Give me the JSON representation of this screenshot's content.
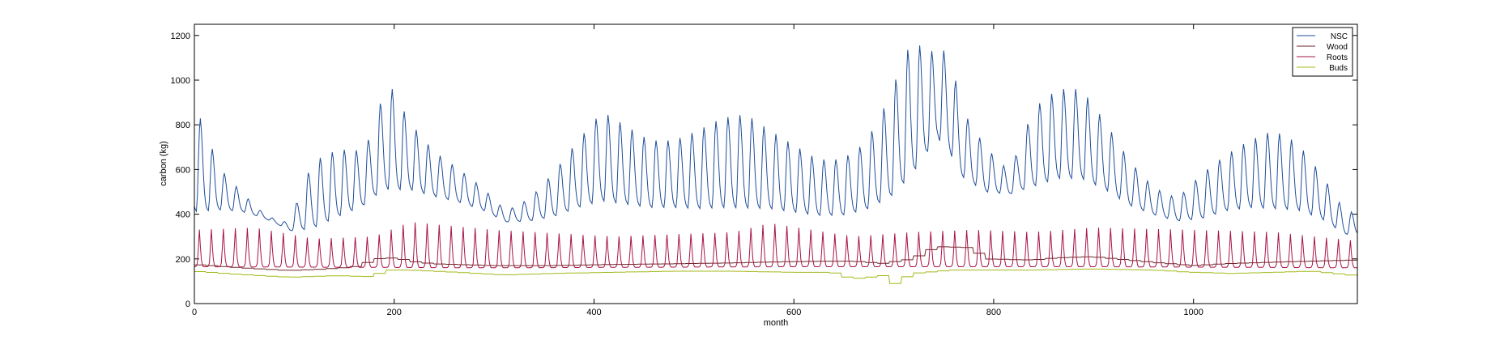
{
  "chart_data": {
    "type": "line",
    "title": "",
    "xlabel": "month",
    "ylabel": "carbon (kg)",
    "xlim": [
      0,
      1164
    ],
    "ylim": [
      0,
      1250
    ],
    "xticks": [
      0,
      200,
      400,
      600,
      800,
      1000
    ],
    "yticks": [
      0,
      200,
      400,
      600,
      800,
      1000,
      1200
    ],
    "grid": false,
    "legend_position": "top-right",
    "series_generation": {
      "cycle_months": 12,
      "NSC": {
        "envelope": [
          [
            0,
            480
          ],
          [
            12,
            350
          ],
          [
            24,
            200
          ],
          [
            36,
            130
          ],
          [
            48,
            90
          ],
          [
            60,
            40
          ],
          [
            72,
            20
          ],
          [
            84,
            15
          ],
          [
            96,
            40
          ],
          [
            108,
            200
          ],
          [
            120,
            300
          ],
          [
            144,
            300
          ],
          [
            168,
            250
          ],
          [
            180,
            300
          ],
          [
            192,
            500
          ],
          [
            204,
            400
          ],
          [
            216,
            300
          ],
          [
            240,
            200
          ],
          [
            264,
            150
          ],
          [
            288,
            100
          ],
          [
            312,
            50
          ],
          [
            336,
            100
          ],
          [
            360,
            200
          ],
          [
            384,
            300
          ],
          [
            408,
            400
          ],
          [
            432,
            350
          ],
          [
            456,
            300
          ],
          [
            480,
            300
          ],
          [
            504,
            350
          ],
          [
            528,
            400
          ],
          [
            552,
            420
          ],
          [
            576,
            350
          ],
          [
            600,
            300
          ],
          [
            624,
            250
          ],
          [
            648,
            250
          ],
          [
            672,
            300
          ],
          [
            696,
            450
          ],
          [
            708,
            550
          ],
          [
            720,
            600
          ],
          [
            732,
            450
          ],
          [
            744,
            400
          ],
          [
            756,
            450
          ],
          [
            768,
            300
          ],
          [
            792,
            200
          ],
          [
            816,
            100
          ],
          [
            840,
            350
          ],
          [
            864,
            400
          ],
          [
            888,
            400
          ],
          [
            912,
            300
          ],
          [
            936,
            200
          ],
          [
            960,
            120
          ],
          [
            984,
            100
          ],
          [
            1008,
            200
          ],
          [
            1032,
            250
          ],
          [
            1056,
            300
          ],
          [
            1080,
            350
          ],
          [
            1104,
            300
          ],
          [
            1128,
            200
          ],
          [
            1152,
            100
          ],
          [
            1164,
            100
          ]
        ],
        "base": [
          [
            0,
            460
          ],
          [
            24,
            440
          ],
          [
            48,
            420
          ],
          [
            72,
            380
          ],
          [
            96,
            330
          ],
          [
            120,
            370
          ],
          [
            144,
            420
          ],
          [
            168,
            460
          ],
          [
            192,
            560
          ],
          [
            216,
            540
          ],
          [
            240,
            500
          ],
          [
            264,
            470
          ],
          [
            288,
            430
          ],
          [
            312,
            370
          ],
          [
            336,
            380
          ],
          [
            360,
            410
          ],
          [
            384,
            460
          ],
          [
            408,
            500
          ],
          [
            432,
            480
          ],
          [
            456,
            460
          ],
          [
            480,
            460
          ],
          [
            504,
            460
          ],
          [
            528,
            470
          ],
          [
            552,
            470
          ],
          [
            576,
            460
          ],
          [
            600,
            440
          ],
          [
            624,
            420
          ],
          [
            648,
            420
          ],
          [
            672,
            450
          ],
          [
            696,
            520
          ],
          [
            720,
            650
          ],
          [
            744,
            780
          ],
          [
            756,
            720
          ],
          [
            768,
            600
          ],
          [
            792,
            520
          ],
          [
            816,
            500
          ],
          [
            840,
            560
          ],
          [
            864,
            600
          ],
          [
            888,
            600
          ],
          [
            912,
            540
          ],
          [
            936,
            460
          ],
          [
            960,
            410
          ],
          [
            984,
            380
          ],
          [
            1008,
            400
          ],
          [
            1032,
            440
          ],
          [
            1056,
            460
          ],
          [
            1080,
            460
          ],
          [
            1104,
            450
          ],
          [
            1128,
            400
          ],
          [
            1152,
            320
          ],
          [
            1164,
            320
          ]
        ]
      },
      "Roots": {
        "base": [
          [
            0,
            165
          ],
          [
            300,
            160
          ],
          [
            600,
            165
          ],
          [
            900,
            165
          ],
          [
            1164,
            160
          ]
        ],
        "peak": [
          [
            0,
            330
          ],
          [
            60,
            340
          ],
          [
            120,
            290
          ],
          [
            180,
            300
          ],
          [
            216,
            365
          ],
          [
            300,
            330
          ],
          [
            420,
            300
          ],
          [
            540,
            320
          ],
          [
            576,
            360
          ],
          [
            660,
            300
          ],
          [
            720,
            320
          ],
          [
            780,
            330
          ],
          [
            840,
            320
          ],
          [
            900,
            340
          ],
          [
            1000,
            330
          ],
          [
            1080,
            320
          ],
          [
            1164,
            280
          ]
        ]
      },
      "Wood": [
        [
          0,
          175
        ],
        [
          24,
          168
        ],
        [
          48,
          160
        ],
        [
          72,
          154
        ],
        [
          96,
          148
        ],
        [
          120,
          152
        ],
        [
          144,
          158
        ],
        [
          168,
          168
        ],
        [
          180,
          200
        ],
        [
          204,
          205
        ],
        [
          216,
          190
        ],
        [
          240,
          178
        ],
        [
          300,
          170
        ],
        [
          360,
          170
        ],
        [
          420,
          175
        ],
        [
          480,
          178
        ],
        [
          540,
          182
        ],
        [
          600,
          188
        ],
        [
          660,
          190
        ],
        [
          690,
          180
        ],
        [
          720,
          200
        ],
        [
          744,
          255
        ],
        [
          780,
          250
        ],
        [
          792,
          200
        ],
        [
          840,
          195
        ],
        [
          864,
          205
        ],
        [
          900,
          210
        ],
        [
          936,
          195
        ],
        [
          960,
          185
        ],
        [
          1000,
          170
        ],
        [
          1040,
          180
        ],
        [
          1080,
          185
        ],
        [
          1120,
          190
        ],
        [
          1164,
          195
        ]
      ],
      "Buds": [
        [
          0,
          145
        ],
        [
          48,
          130
        ],
        [
          96,
          118
        ],
        [
          144,
          125
        ],
        [
          180,
          120
        ],
        [
          192,
          150
        ],
        [
          216,
          150
        ],
        [
          264,
          140
        ],
        [
          312,
          128
        ],
        [
          360,
          135
        ],
        [
          420,
          140
        ],
        [
          480,
          145
        ],
        [
          540,
          145
        ],
        [
          600,
          140
        ],
        [
          640,
          140
        ],
        [
          660,
          110
        ],
        [
          690,
          125
        ],
        [
          700,
          85
        ],
        [
          720,
          135
        ],
        [
          760,
          150
        ],
        [
          800,
          150
        ],
        [
          840,
          150
        ],
        [
          900,
          155
        ],
        [
          960,
          150
        ],
        [
          1000,
          140
        ],
        [
          1040,
          135
        ],
        [
          1080,
          140
        ],
        [
          1120,
          145
        ],
        [
          1164,
          125
        ]
      ]
    },
    "series": [
      {
        "name": "NSC",
        "color": "#1f4e9a"
      },
      {
        "name": "Wood",
        "color": "#6e2a2a"
      },
      {
        "name": "Roots",
        "color": "#a8134a"
      },
      {
        "name": "Buds",
        "color": "#a3b818"
      }
    ]
  }
}
